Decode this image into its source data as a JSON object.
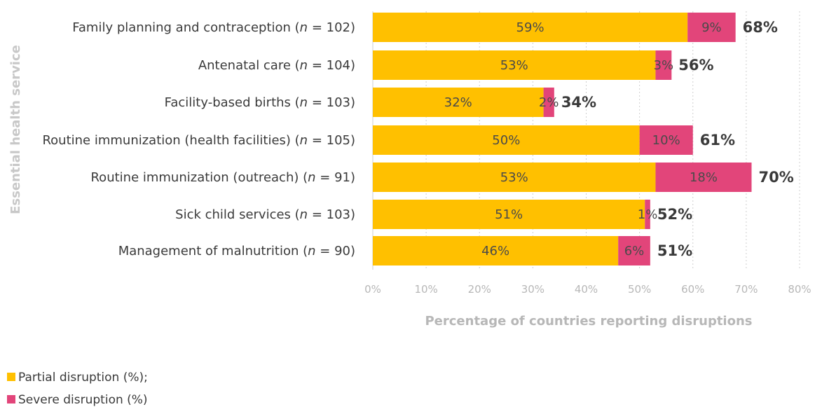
{
  "colors": {
    "partial": "#FFC000",
    "severe": "#E2457A"
  },
  "chart_data": {
    "type": "bar",
    "orientation": "horizontal",
    "stacked": true,
    "ylabel": "Essential health service",
    "xlabel": "Percentage of countries reporting disruptions",
    "xlim": [
      0,
      80
    ],
    "xticks": [
      "0%",
      "10%",
      "20%",
      "30%",
      "40%",
      "50%",
      "60%",
      "70%",
      "80%"
    ],
    "grid": "vertical dotted",
    "categories": [
      {
        "pre": "Family planning and contraception (",
        "n": "n",
        "post": " = 102)"
      },
      {
        "pre": "Antenatal care (",
        "n": "n",
        "post": " = 104)"
      },
      {
        "pre": "Facility-based births (",
        "n": "n",
        "post": " = 103)"
      },
      {
        "pre": "Routine immunization (health facilities) (",
        "n": "n",
        "post": " = 105)"
      },
      {
        "pre": "Routine immunization (outreach) (",
        "n": "n",
        "post": " = 91)"
      },
      {
        "pre": "Sick child services (",
        "n": "n",
        "post": " = 103)"
      },
      {
        "pre": "Management of malnutrition (",
        "n": "n",
        "post": " = 90)"
      }
    ],
    "series": [
      {
        "name": "Partial disruption (%);",
        "values": [
          59,
          53,
          32,
          50,
          53,
          51,
          46
        ]
      },
      {
        "name": "Severe disruption (%)",
        "values": [
          9,
          3,
          2,
          10,
          18,
          1,
          6
        ]
      }
    ],
    "segment_labels": [
      [
        "59%",
        "53%",
        "32%",
        "50%",
        "53%",
        "51%",
        "46%"
      ],
      [
        "9%",
        "3%",
        "2%",
        "10%",
        "18%",
        "1%",
        "6%"
      ]
    ],
    "totals": [
      "68%",
      "56%",
      "34%",
      "61%",
      "70%",
      "52%",
      "51%"
    ],
    "legend_position": "bottom-left"
  }
}
